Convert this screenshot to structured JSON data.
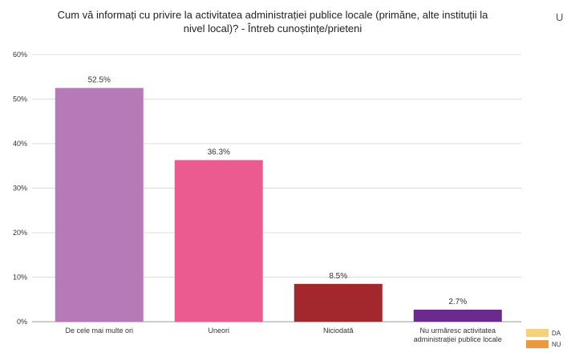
{
  "chart_data": {
    "type": "bar",
    "title_lines": [
      "Cum vă informați cu privire la activitatea administrației publice locale (primăne, alte instituții la",
      "nivel local)? - Întreb cunoștințe/prieteni"
    ],
    "categories": [
      [
        "De cele mai multe ori"
      ],
      [
        "Uneori"
      ],
      [
        "Niciodată"
      ],
      [
        "Nu urmăresc activitatea",
        "administrației publice locale"
      ]
    ],
    "values": [
      52.5,
      36.3,
      8.5,
      2.7
    ],
    "value_labels": [
      "52.5%",
      "36.3%",
      "8.5%",
      "2.7%"
    ],
    "colors": [
      "#b57ab7",
      "#ec5b90",
      "#a3282d",
      "#6b2a8c"
    ],
    "y_ticks": [
      "0%",
      "10%",
      "20%",
      "30%",
      "40%",
      "50%",
      "60%"
    ],
    "ylim": [
      0,
      60
    ],
    "grid": true,
    "legend": {
      "position": "bottom-right",
      "items": [
        {
          "label": "DA",
          "color": "#f5d27a"
        },
        {
          "label": "NU",
          "color": "#ea9a3c"
        }
      ]
    }
  },
  "cutoff_text": "U"
}
